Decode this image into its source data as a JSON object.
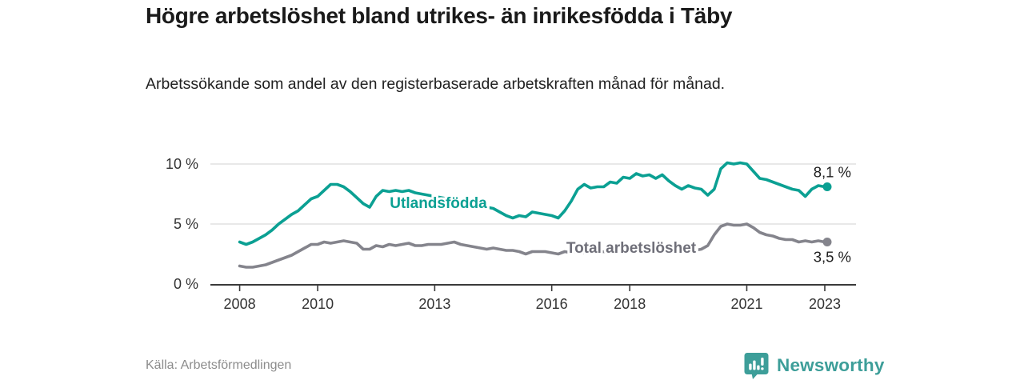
{
  "header": {
    "title": "Högre arbetslöshet bland utrikes- än inrikesfödda i Täby",
    "subtitle": "Arbetssökande som andel av den registerbaserade arbetskraften månad för månad."
  },
  "footer": {
    "source_label": "Källa: Arbetsförmedlingen"
  },
  "branding": {
    "name": "Newsworthy",
    "icon": "newsworthy-speech-bubble-bar-chart-icon",
    "color": "#3d9e99"
  },
  "colors": {
    "accent_teal": "#0ba093",
    "line_gray": "#84848c",
    "gray_label": "#6f6f79",
    "axis": "#3a3a3a",
    "tick_text": "#333333",
    "gridline": "#d9d9d9",
    "value_label": "#1d1d1d"
  },
  "chart_data": {
    "type": "line",
    "title": "Högre arbetslöshet bland utrikes- än inrikesfödda i Täby",
    "subtitle": "Arbetssökande som andel av den registerbaserade arbetskraften månad för månad.",
    "x_unit": "year (monthly series sampled bimonthly)",
    "x_start": 2008.0,
    "x_step_years": 0.166667,
    "xlim": [
      2007.25,
      2023.8
    ],
    "ylim": [
      0,
      10.7
    ],
    "x_ticks": [
      2008,
      2010,
      2013,
      2016,
      2018,
      2021,
      2023
    ],
    "y_ticks": [
      0,
      5,
      10
    ],
    "y_tick_suffix": " %",
    "grid": "horizontal",
    "legend_position": "inline-labels",
    "series": [
      {
        "name": "Utlandsfödda",
        "color": "#0ba093",
        "end_label": "8,1 %",
        "end_value": 8.1,
        "values": [
          3.5,
          3.3,
          3.5,
          3.8,
          4.1,
          4.5,
          5.0,
          5.4,
          5.8,
          6.1,
          6.6,
          7.1,
          7.3,
          7.8,
          8.3,
          8.3,
          8.1,
          7.7,
          7.2,
          6.7,
          6.4,
          7.3,
          7.8,
          7.7,
          7.8,
          7.7,
          7.8,
          7.6,
          7.5,
          7.4,
          7.3,
          7.2,
          7.1,
          7.0,
          6.8,
          6.7,
          6.6,
          6.5,
          6.4,
          6.3,
          6.0,
          5.7,
          5.5,
          5.7,
          5.6,
          6.0,
          5.9,
          5.8,
          5.7,
          5.5,
          6.1,
          6.9,
          7.9,
          8.3,
          8.0,
          8.1,
          8.1,
          8.5,
          8.4,
          8.9,
          8.8,
          9.2,
          9.0,
          9.1,
          8.8,
          9.1,
          8.6,
          8.2,
          7.9,
          8.2,
          8.0,
          7.9,
          7.4,
          7.9,
          9.6,
          10.1,
          10.0,
          10.1,
          10.0,
          9.4,
          8.8,
          8.7,
          8.5,
          8.3,
          8.1,
          7.9,
          7.8,
          7.3,
          7.9,
          8.2,
          8.1
        ]
      },
      {
        "name": "Total arbetslöshet",
        "color": "#84848c",
        "label_color": "#6f6f79",
        "end_label": "3,5 %",
        "end_value": 3.5,
        "values": [
          1.5,
          1.4,
          1.4,
          1.5,
          1.6,
          1.8,
          2.0,
          2.2,
          2.4,
          2.7,
          3.0,
          3.3,
          3.3,
          3.5,
          3.4,
          3.5,
          3.6,
          3.5,
          3.4,
          2.9,
          2.9,
          3.2,
          3.1,
          3.3,
          3.2,
          3.3,
          3.4,
          3.2,
          3.2,
          3.3,
          3.3,
          3.3,
          3.4,
          3.5,
          3.3,
          3.2,
          3.1,
          3.0,
          2.9,
          3.0,
          2.9,
          2.8,
          2.8,
          2.7,
          2.5,
          2.7,
          2.7,
          2.7,
          2.6,
          2.5,
          2.7,
          2.6,
          2.7,
          2.6,
          2.7,
          2.6,
          2.7,
          2.6,
          2.7,
          2.6,
          2.7,
          2.6,
          2.7,
          2.6,
          2.6,
          2.7,
          2.6,
          2.7,
          2.6,
          2.7,
          2.8,
          2.9,
          3.2,
          4.1,
          4.8,
          5.0,
          4.9,
          4.9,
          5.0,
          4.7,
          4.3,
          4.1,
          4.0,
          3.8,
          3.7,
          3.7,
          3.5,
          3.6,
          3.5,
          3.6,
          3.5
        ]
      }
    ]
  }
}
